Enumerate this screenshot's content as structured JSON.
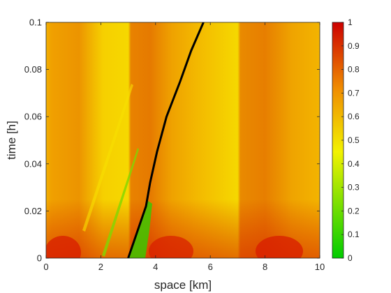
{
  "chart_data": {
    "type": "heatmap",
    "title": "",
    "xlabel": "space [km]",
    "ylabel": "time [h]",
    "xlim": [
      0,
      10
    ],
    "ylim": [
      0,
      0.1
    ],
    "x_ticks": [
      "0",
      "2",
      "4",
      "6",
      "8",
      "10"
    ],
    "y_ticks": [
      "0",
      "0.02",
      "0.04",
      "0.06",
      "0.08",
      "0.1"
    ],
    "colorbar": {
      "range": [
        0,
        1
      ],
      "ticks": [
        "0",
        "0.1",
        "0.2",
        "0.3",
        "0.4",
        "0.5",
        "0.6",
        "0.7",
        "0.8",
        "0.9",
        "1"
      ],
      "colormap": [
        "#00cc00",
        "#f2f200",
        "#f08c00",
        "#cc0000"
      ]
    },
    "field_description": {
      "background_value": 0.65,
      "high_density_bands": [
        {
          "x_start": 0.2,
          "x_end": 2.0,
          "value": 0.9
        },
        {
          "x_start": 3.2,
          "x_end": 4.6,
          "value": 0.9
        },
        {
          "x_start": 7.4,
          "x_end": 9.6,
          "value": 0.9
        }
      ]
    },
    "series": [
      {
        "type": "trajectory",
        "color": "#000000",
        "x": [
          3.0,
          3.65,
          3.8,
          4.05,
          4.4,
          4.9,
          5.3,
          5.75
        ],
        "y": [
          0.0,
          0.022,
          0.032,
          0.045,
          0.06,
          0.075,
          0.088,
          0.1
        ]
      }
    ]
  }
}
